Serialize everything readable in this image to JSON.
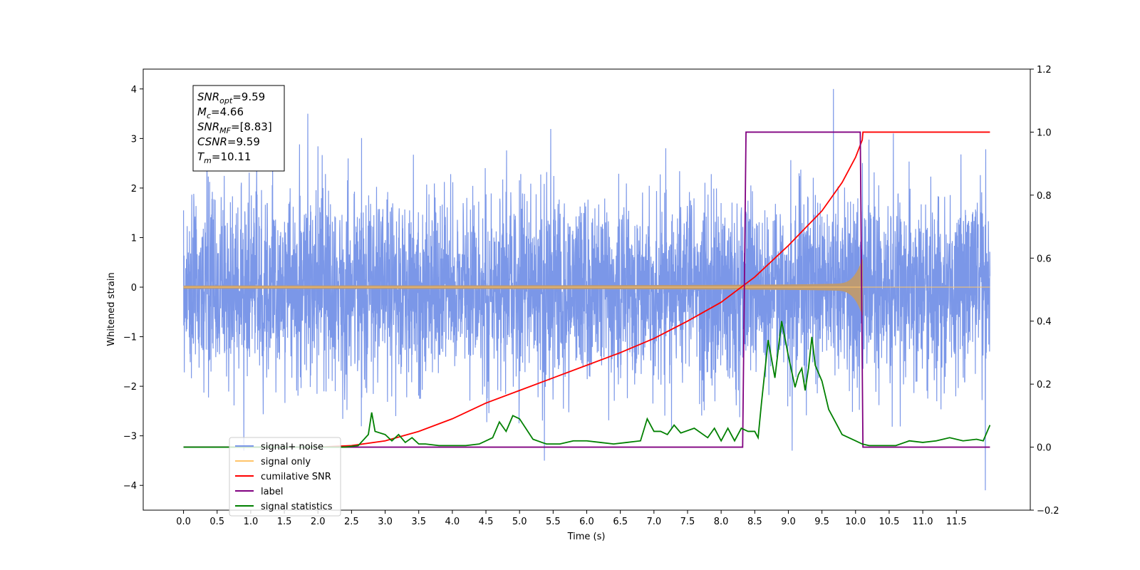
{
  "chart_data": {
    "type": "line",
    "xlabel": "Time (s)",
    "ylabel": "Whitened strain",
    "xlim": [
      -0.6,
      12.6
    ],
    "xticks": [
      0.0,
      0.5,
      1.0,
      1.5,
      2.0,
      2.5,
      3.0,
      3.5,
      4.0,
      4.5,
      5.0,
      5.5,
      6.0,
      6.5,
      7.0,
      7.5,
      8.0,
      8.5,
      9.0,
      9.5,
      10.0,
      10.5,
      11.0,
      11.5
    ],
    "xtick_labels": [
      "0.0",
      "0.5",
      "1.0",
      "1.5",
      "2.0",
      "2.5",
      "3.0",
      "3.5",
      "4.0",
      "4.5",
      "5.0",
      "5.5",
      "6.0",
      "6.5",
      "7.0",
      "7.5",
      "8.0",
      "8.5",
      "9.0",
      "9.5",
      "10.0",
      "10.5",
      "11.0",
      "11.5"
    ],
    "ylim_left": [
      -4.5,
      4.4
    ],
    "yticks_left": [
      -4,
      -3,
      -2,
      -1,
      0,
      1,
      2,
      3,
      4
    ],
    "ylim_right": [
      -0.2,
      1.2
    ],
    "yticks_right": [
      -0.2,
      0.0,
      0.2,
      0.4,
      0.6,
      0.8,
      1.0,
      1.2
    ],
    "ytick_labels_right": [
      "−0.2",
      "0.0",
      "0.2",
      "0.4",
      "0.6",
      "0.8",
      "1.0",
      "1.2"
    ],
    "grid": false,
    "legend_position": "lower-left",
    "annotation": {
      "lines": [
        {
          "sym": "SNR",
          "sub": "opt",
          "val": "=9.59"
        },
        {
          "sym": "M",
          "sub": "c",
          "val": "=4.66"
        },
        {
          "sym": "SNR",
          "sub": "MF",
          "val": "=[8.83]"
        },
        {
          "sym": "CSNR",
          "sub": "",
          "val": "=9.59"
        },
        {
          "sym": "T",
          "sub": "m",
          "val": "=10.11"
        }
      ]
    },
    "noise_params": {
      "t_start": 0.0,
      "t_end": 12.0,
      "sigma": 0.95,
      "peak_max": 4.0,
      "peak_min": -4.1
    },
    "signal_params": {
      "t_merger": 10.11,
      "peak_amplitude": 0.58
    },
    "series": [
      {
        "name": "signal+ noise",
        "color": "#7b97e8",
        "axis": "left"
      },
      {
        "name": "signal only",
        "color": "#ffc46a",
        "fill_color": "#bc9a74",
        "axis": "left"
      },
      {
        "name": "cumilative SNR",
        "color": "#ff0000",
        "axis": "right",
        "x": [
          0.0,
          2.0,
          2.5,
          3.0,
          3.5,
          4.0,
          4.5,
          5.0,
          5.5,
          6.0,
          6.5,
          7.0,
          7.5,
          8.0,
          8.5,
          9.0,
          9.5,
          9.8,
          10.0,
          10.1,
          10.11,
          12.0
        ],
        "y": [
          0.0,
          0.0,
          0.005,
          0.02,
          0.05,
          0.09,
          0.14,
          0.18,
          0.22,
          0.26,
          0.3,
          0.345,
          0.4,
          0.46,
          0.54,
          0.64,
          0.75,
          0.84,
          0.92,
          0.975,
          1.0,
          1.0
        ]
      },
      {
        "name": "label",
        "color": "#800080",
        "axis": "right",
        "x": [
          0.0,
          8.32,
          8.37,
          10.07,
          10.11,
          12.0
        ],
        "y": [
          0.0,
          0.0,
          1.0,
          1.0,
          0.0,
          0.0
        ]
      },
      {
        "name": "signal statistics",
        "color": "#008000",
        "axis": "right",
        "x": [
          0.0,
          2.4,
          2.6,
          2.75,
          2.8,
          2.85,
          3.0,
          3.1,
          3.2,
          3.3,
          3.4,
          3.5,
          3.6,
          3.8,
          4.0,
          4.2,
          4.4,
          4.6,
          4.7,
          4.8,
          4.9,
          5.0,
          5.2,
          5.4,
          5.6,
          5.8,
          6.0,
          6.2,
          6.4,
          6.6,
          6.8,
          6.9,
          7.0,
          7.1,
          7.2,
          7.3,
          7.4,
          7.6,
          7.8,
          7.9,
          8.0,
          8.1,
          8.2,
          8.3,
          8.4,
          8.5,
          8.55,
          8.6,
          8.7,
          8.8,
          8.9,
          9.0,
          9.1,
          9.15,
          9.2,
          9.25,
          9.3,
          9.35,
          9.4,
          9.5,
          9.6,
          9.7,
          9.8,
          9.9,
          10.0,
          10.1,
          10.2,
          10.4,
          10.6,
          10.8,
          11.0,
          11.2,
          11.4,
          11.6,
          11.8,
          11.9,
          12.0
        ],
        "y": [
          0.0,
          0.0,
          0.005,
          0.04,
          0.11,
          0.05,
          0.04,
          0.02,
          0.04,
          0.015,
          0.03,
          0.01,
          0.01,
          0.005,
          0.005,
          0.005,
          0.01,
          0.03,
          0.08,
          0.05,
          0.1,
          0.09,
          0.025,
          0.01,
          0.01,
          0.02,
          0.02,
          0.015,
          0.01,
          0.015,
          0.02,
          0.09,
          0.05,
          0.05,
          0.04,
          0.07,
          0.045,
          0.06,
          0.03,
          0.06,
          0.02,
          0.06,
          0.02,
          0.06,
          0.05,
          0.05,
          0.03,
          0.14,
          0.34,
          0.22,
          0.4,
          0.29,
          0.19,
          0.23,
          0.25,
          0.18,
          0.25,
          0.35,
          0.26,
          0.21,
          0.12,
          0.08,
          0.04,
          0.03,
          0.02,
          0.01,
          0.005,
          0.005,
          0.005,
          0.02,
          0.015,
          0.02,
          0.03,
          0.02,
          0.025,
          0.02,
          0.07
        ]
      }
    ],
    "legend": {
      "items": [
        {
          "label": "signal+ noise",
          "color": "#7b97e8"
        },
        {
          "label": "signal only",
          "color": "#ffc46a"
        },
        {
          "label": "cumilative SNR",
          "color": "#ff0000"
        },
        {
          "label": "label",
          "color": "#800080"
        },
        {
          "label": "signal statistics",
          "color": "#008000"
        }
      ]
    }
  }
}
